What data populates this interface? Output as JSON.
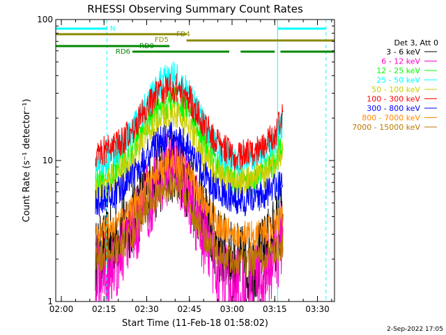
{
  "chart_data": {
    "type": "line",
    "title": "RHESSI Observing Summary Count Rates",
    "xlabel": "Start Time (11-Feb-18 01:58:02)",
    "ylabel": "Count Rate (s⁻¹ detector⁻¹)",
    "y_scale": "log",
    "ylim": [
      1,
      100
    ],
    "xlim": [
      "01:58:02",
      "03:36:00"
    ],
    "x_ticks": [
      "02:00",
      "02:15",
      "02:30",
      "02:45",
      "03:00",
      "03:15",
      "03:30"
    ],
    "y_ticks": [
      "1",
      "10",
      "100"
    ],
    "legend_title": "Det 3, Att 0",
    "legend_position": "right",
    "series": [
      {
        "name": "3 - 6 keV",
        "color": "#000000",
        "x": [
          "02:12",
          "02:20",
          "02:25",
          "02:30",
          "02:35",
          "02:40",
          "02:45",
          "02:50",
          "02:55",
          "03:00",
          "03:05",
          "03:10",
          "03:15",
          "03:18"
        ],
        "y": [
          2,
          3,
          4,
          6,
          8,
          10,
          7,
          4,
          2.5,
          2,
          1.8,
          2,
          3,
          4
        ]
      },
      {
        "name": "6 - 12 keV",
        "color": "#ff00cc",
        "x": [
          "02:12",
          "02:20",
          "02:25",
          "02:30",
          "02:35",
          "02:40",
          "02:45",
          "02:50",
          "02:55",
          "03:00",
          "03:05",
          "03:10",
          "03:15",
          "03:18"
        ],
        "y": [
          1.6,
          2,
          3,
          5,
          8,
          10,
          6,
          3,
          1.6,
          1.3,
          1.2,
          1.4,
          2,
          3
        ]
      },
      {
        "name": "12 - 25 keV",
        "color": "#00ff00",
        "x": [
          "02:12",
          "02:20",
          "02:25",
          "02:30",
          "02:35",
          "02:40",
          "02:45",
          "02:50",
          "02:55",
          "03:00",
          "03:05",
          "03:10",
          "03:15",
          "03:18"
        ],
        "y": [
          7,
          9,
          12,
          18,
          24,
          27,
          22,
          14,
          9,
          7,
          7,
          7.5,
          10,
          15
        ]
      },
      {
        "name": "25 - 50 keV",
        "color": "#00ffff",
        "x": [
          "02:12",
          "02:20",
          "02:25",
          "02:30",
          "02:35",
          "02:40",
          "02:45",
          "02:50",
          "02:55",
          "03:00",
          "03:05",
          "03:10",
          "03:15",
          "03:18"
        ],
        "y": [
          9,
          12,
          16,
          25,
          36,
          40,
          30,
          18,
          12,
          10,
          10,
          11,
          14,
          18
        ]
      },
      {
        "name": "50 - 100 keV",
        "color": "#cccc00",
        "x": [
          "02:12",
          "02:20",
          "02:25",
          "02:30",
          "02:35",
          "02:40",
          "02:45",
          "02:50",
          "02:55",
          "03:00",
          "03:05",
          "03:10",
          "03:15",
          "03:18"
        ],
        "y": [
          6,
          8,
          10,
          15,
          20,
          22,
          17,
          11,
          8,
          7,
          7,
          7.5,
          9,
          12
        ]
      },
      {
        "name": "100 - 300 keV",
        "color": "#ff0000",
        "x": [
          "02:12",
          "02:20",
          "02:25",
          "02:30",
          "02:35",
          "02:40",
          "02:45",
          "02:50",
          "02:55",
          "03:00",
          "03:05",
          "03:10",
          "03:15",
          "03:18"
        ],
        "y": [
          11,
          13,
          16,
          24,
          32,
          33,
          27,
          18,
          13,
          11,
          11,
          12,
          15,
          22
        ]
      },
      {
        "name": "300 - 800 keV",
        "color": "#0000ff",
        "x": [
          "02:12",
          "02:20",
          "02:25",
          "02:30",
          "02:35",
          "02:40",
          "02:45",
          "02:50",
          "02:55",
          "03:00",
          "03:05",
          "03:10",
          "03:15",
          "03:18"
        ],
        "y": [
          5,
          6,
          8,
          11,
          14,
          15,
          12,
          8,
          6,
          5.5,
          5,
          5.5,
          6.5,
          7
        ]
      },
      {
        "name": "800 - 7000 keV",
        "color": "#ff8800",
        "x": [
          "02:12",
          "02:20",
          "02:25",
          "02:30",
          "02:35",
          "02:40",
          "02:45",
          "02:50",
          "02:55",
          "03:00",
          "03:05",
          "03:10",
          "03:15",
          "03:18"
        ],
        "y": [
          3,
          3.5,
          4.5,
          6.5,
          9,
          10,
          7.5,
          5,
          3.5,
          3,
          3,
          3,
          3.5,
          4
        ]
      },
      {
        "name": "7000 - 15000 keV",
        "color": "#bb7700",
        "x": [
          "02:12",
          "02:20",
          "02:25",
          "02:30",
          "02:35",
          "02:40",
          "02:45",
          "02:50",
          "02:55",
          "03:00",
          "03:05",
          "03:10",
          "03:15",
          "03:18"
        ],
        "y": [
          2,
          2.4,
          3,
          4.5,
          6,
          7,
          5,
          3,
          2.2,
          2,
          1.9,
          2,
          2.3,
          2.6
        ]
      }
    ],
    "status_flags": [
      {
        "name": "N",
        "color": "#00ffff",
        "intervals": [
          [
            "01:58:02",
            "02:16:00"
          ],
          [
            "03:16:00",
            "03:33:00"
          ]
        ]
      },
      {
        "name": "FD4",
        "color": "#888800",
        "intervals": [
          [
            "01:58:02",
            "02:44:00"
          ]
        ]
      },
      {
        "name": "FD5",
        "color": "#888800",
        "intervals": [
          [
            "02:44:00",
            "03:36:00"
          ]
        ]
      },
      {
        "name": "RD0",
        "color": "#008800",
        "intervals": [
          [
            "01:58:02",
            "02:38:00"
          ]
        ]
      },
      {
        "name": "RD6",
        "color": "#008800",
        "intervals": [
          [
            "02:25:00",
            "02:59:00"
          ],
          [
            "03:03:00",
            "03:15:00"
          ],
          [
            "03:17:00",
            "03:36:00"
          ]
        ]
      }
    ],
    "vertical_markers": [
      {
        "time": "01:58:02",
        "color": "#00ffff",
        "style": "solid"
      },
      {
        "time": "02:16:00",
        "color": "#00ffff",
        "style": "dashed"
      },
      {
        "time": "03:16:00",
        "color": "#00ffff",
        "style": "solid"
      },
      {
        "time": "03:33:00",
        "color": "#00ffff",
        "style": "dashed"
      }
    ]
  },
  "footer": {
    "date_stamp": "2-Sep-2022 17:05"
  }
}
